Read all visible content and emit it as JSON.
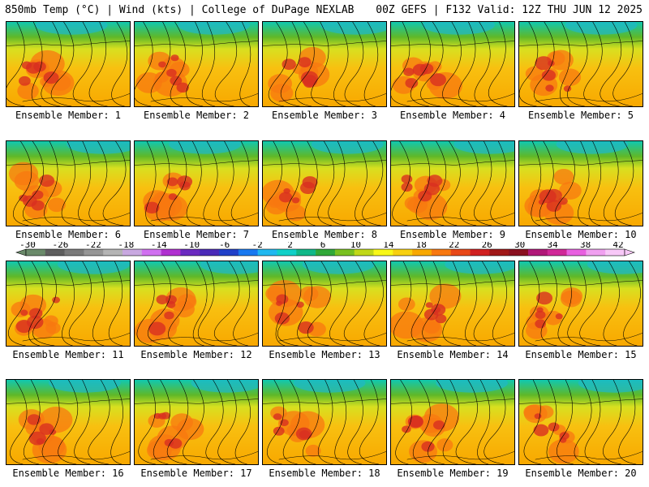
{
  "header": {
    "left": "850mb Temp (°C) | Wind (kts) | College of DuPage NEXLAB",
    "right": "00Z GEFS | F132 Valid: 12Z THU JUN 12 2025"
  },
  "members": [
    {
      "label": "Ensemble Member: 1"
    },
    {
      "label": "Ensemble Member: 2"
    },
    {
      "label": "Ensemble Member: 3"
    },
    {
      "label": "Ensemble Member: 4"
    },
    {
      "label": "Ensemble Member: 5"
    },
    {
      "label": "Ensemble Member: 6"
    },
    {
      "label": "Ensemble Member: 7"
    },
    {
      "label": "Ensemble Member: 8"
    },
    {
      "label": "Ensemble Member: 9"
    },
    {
      "label": "Ensemble Member: 10"
    },
    {
      "label": "Ensemble Member: 11"
    },
    {
      "label": "Ensemble Member: 12"
    },
    {
      "label": "Ensemble Member: 13"
    },
    {
      "label": "Ensemble Member: 14"
    },
    {
      "label": "Ensemble Member: 15"
    },
    {
      "label": "Ensemble Member: 16"
    },
    {
      "label": "Ensemble Member: 17"
    },
    {
      "label": "Ensemble Member: 18"
    },
    {
      "label": "Ensemble Member: 19"
    },
    {
      "label": "Ensemble Member: 20"
    }
  ],
  "colorbar": {
    "labels": [
      "-30",
      "-26",
      "-22",
      "-18",
      "-14",
      "-10",
      "-6",
      "-2",
      "2",
      "6",
      "10",
      "14",
      "18",
      "22",
      "26",
      "30",
      "34",
      "38",
      "42"
    ],
    "colors": [
      "#6a8a6a",
      "#5e5e5e",
      "#7a7a7a",
      "#969696",
      "#b4b4b4",
      "#c8a8e0",
      "#d070f0",
      "#b030d0",
      "#6a2ac0",
      "#4a2ab8",
      "#2040c8",
      "#1878f0",
      "#20b8f0",
      "#10d0c8",
      "#10b888",
      "#30a838",
      "#78c020",
      "#c0d818",
      "#f8f818",
      "#f8d010",
      "#f8a800",
      "#f87810",
      "#e84818",
      "#d02020",
      "#a01818",
      "#8a1020",
      "#b01878",
      "#d02898",
      "#e860e0",
      "#f0a0f0",
      "#f8c8f8"
    ]
  }
}
